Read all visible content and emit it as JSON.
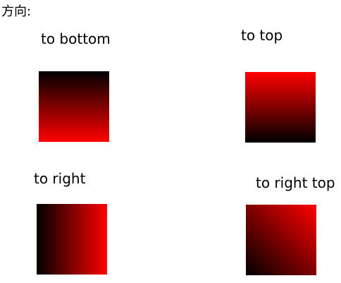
{
  "heading": "方向:",
  "examples": [
    {
      "label": "to bottom",
      "direction": "to bottom",
      "start_color": "#000000",
      "end_color": "#ff0000"
    },
    {
      "label": "to top",
      "direction": "to top",
      "start_color": "#000000",
      "end_color": "#ff0000"
    },
    {
      "label": "to right",
      "direction": "to right",
      "start_color": "#000000",
      "end_color": "#ff0000"
    },
    {
      "label": "to right top",
      "direction": "to right top",
      "start_color": "#000000",
      "end_color": "#ff0000"
    }
  ]
}
